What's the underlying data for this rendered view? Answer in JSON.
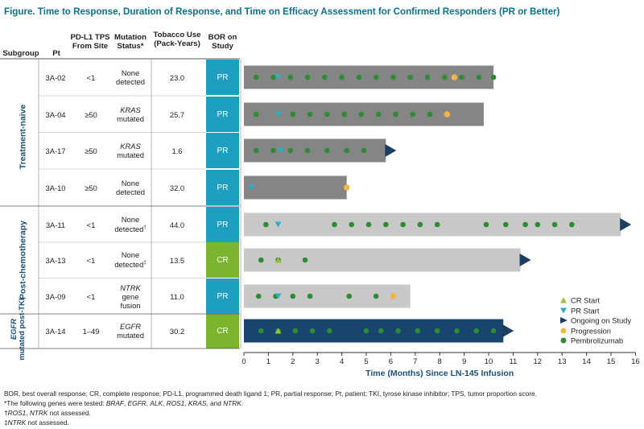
{
  "title": "Figure. Time to Response, Duration of Response, and Time on Efficacy Assessment for Confirmed Responders (PR or Better)",
  "table_headers": {
    "subgroup": "Subgroup",
    "pt": "Pt",
    "pdl1": "PD-L1 TPS From Site",
    "mutation": "Mutation Status*",
    "tobacco": "Tobacco Use (Pack-Years)",
    "bor": "BOR on Study"
  },
  "groups": [
    {
      "label": "Treatment-naive"
    },
    {
      "label": "Post-chemotherapy"
    },
    {
      "label_italic": "EGFR",
      "label": "mutated post-TKI"
    }
  ],
  "rows": [
    {
      "pt": "3A-02",
      "pdl1": "<1",
      "mut": "None detected",
      "mut_italic": false,
      "mut_mark": "",
      "tobacco": "23.0",
      "bor": "PR"
    },
    {
      "pt": "3A-04",
      "pdl1": "≥50",
      "mut_top": "KRAS",
      "mut": "mutated",
      "mut_italic": true,
      "mut_mark": "",
      "tobacco": "25.7",
      "bor": "PR"
    },
    {
      "pt": "3A-17",
      "pdl1": "≥50",
      "mut_top": "KRAS",
      "mut": "mutated",
      "mut_italic": true,
      "mut_mark": "",
      "tobacco": "1.6",
      "bor": "PR"
    },
    {
      "pt": "3A-10",
      "pdl1": "≥50",
      "mut": "None detected",
      "mut_italic": false,
      "mut_mark": "",
      "tobacco": "32.0",
      "bor": "PR"
    },
    {
      "pt": "3A-11",
      "pdl1": "<1",
      "mut": "None detected",
      "mut_italic": false,
      "mut_mark": "†",
      "tobacco": "44.0",
      "bor": "PR"
    },
    {
      "pt": "3A-13",
      "pdl1": "<1",
      "mut": "None detected",
      "mut_italic": false,
      "mut_mark": "‡",
      "tobacco": "13.5",
      "bor": "CR"
    },
    {
      "pt": "3A-09",
      "pdl1": "<1",
      "mut_top": "NTRK",
      "mut": "gene fusion",
      "mut_italic": true,
      "mut_mark": "",
      "tobacco": "11.0",
      "bor": "PR"
    },
    {
      "pt": "3A-14",
      "pdl1": "1–49",
      "mut_top": "EGFR",
      "mut": "mutated",
      "mut_italic": true,
      "mut_mark": "",
      "tobacco": "30.2",
      "bor": "CR"
    }
  ],
  "legend": {
    "cr_start": "CR Start",
    "pr_start": "PR Start",
    "ongoing": "Ongoing on Study",
    "progression": "Progression",
    "pembrolizumab": "Pembrolizumab"
  },
  "colors": {
    "title": "#0f6e8a",
    "pr": "#1e9ec1",
    "cr": "#7ab52d",
    "bar_naive": "#858585",
    "bar_post": "#c8c8c8",
    "bar_egfr": "#17456e",
    "pembro": "#2e8b35",
    "progression": "#f0b546",
    "pr_start": "#2ab0c6",
    "cr_start": "#9ac03a",
    "ongoing": "#1c3e63"
  },
  "chart_data": {
    "type": "swimmer",
    "xlabel": "Time (Months) Since LN-145 Infusion",
    "xlim": [
      0,
      16
    ],
    "xticks": [
      0,
      1,
      2,
      3,
      4,
      5,
      6,
      7,
      8,
      9,
      10,
      11,
      12,
      13,
      14,
      15,
      16
    ],
    "series": [
      {
        "pt": "3A-02",
        "duration": 10.2,
        "ongoing": false,
        "pr_start": 1.4,
        "cr_start": null,
        "progression": 8.6,
        "pembrolizumab": [
          0.5,
          1.2,
          1.9,
          2.6,
          3.3,
          4.0,
          4.7,
          5.4,
          6.1,
          6.8,
          7.5,
          8.2,
          8.9,
          9.6,
          10.2
        ]
      },
      {
        "pt": "3A-04",
        "duration": 9.8,
        "ongoing": false,
        "pr_start": 1.4,
        "cr_start": null,
        "progression": 8.3,
        "pembrolizumab": [
          0.5,
          2.0,
          2.7,
          3.4,
          4.1,
          4.8,
          5.5,
          6.2,
          6.9,
          7.6
        ]
      },
      {
        "pt": "3A-17",
        "duration": 5.8,
        "ongoing": true,
        "pr_start": 1.5,
        "cr_start": null,
        "progression": null,
        "pembrolizumab": [
          0.5,
          1.2,
          1.9,
          2.6,
          3.4,
          4.2,
          4.9
        ]
      },
      {
        "pt": "3A-10",
        "duration": 4.2,
        "ongoing": false,
        "pr_start": 0.3,
        "cr_start": null,
        "progression": 4.2,
        "pembrolizumab": []
      },
      {
        "pt": "3A-11",
        "duration": 15.4,
        "ongoing": true,
        "pr_start": 1.4,
        "cr_start": null,
        "progression": null,
        "pembrolizumab": [
          0.9,
          3.7,
          4.4,
          5.1,
          5.8,
          6.5,
          7.2,
          7.9,
          9.9,
          10.7,
          11.5,
          12.0,
          12.7,
          13.4
        ]
      },
      {
        "pt": "3A-13",
        "duration": 11.3,
        "ongoing": true,
        "pr_start": null,
        "cr_start": 1.4,
        "progression": null,
        "pembrolizumab": [
          0.7,
          1.4,
          2.5
        ]
      },
      {
        "pt": "3A-09",
        "duration": 6.8,
        "ongoing": false,
        "pr_start": 1.4,
        "cr_start": null,
        "progression": 6.1,
        "pembrolizumab": [
          0.6,
          1.3,
          2.0,
          2.7,
          4.3,
          5.4
        ]
      },
      {
        "pt": "3A-14",
        "duration": 10.6,
        "ongoing": true,
        "pr_start": null,
        "cr_start": 1.4,
        "progression": null,
        "pembrolizumab": [
          0.7,
          1.4,
          2.1,
          2.8,
          3.5,
          5.0,
          5.6,
          6.3,
          7.1,
          7.9,
          8.7,
          9.5,
          10.2
        ]
      }
    ]
  },
  "footnotes": [
    "BOR, best overall response; CR, complete response; PD-L1, programmed death ligand 1; PR, partial response; Pt, patient; TKI, tyrose kinase inhibitor; TPS, tumor proportion score.",
    "*The following genes were tested: BRAF, EGFR, ALK, ROS1, KRAS, and NTRK.",
    "†ROS1, NTRK not assessed.",
    "‡NTRK not assessed."
  ]
}
